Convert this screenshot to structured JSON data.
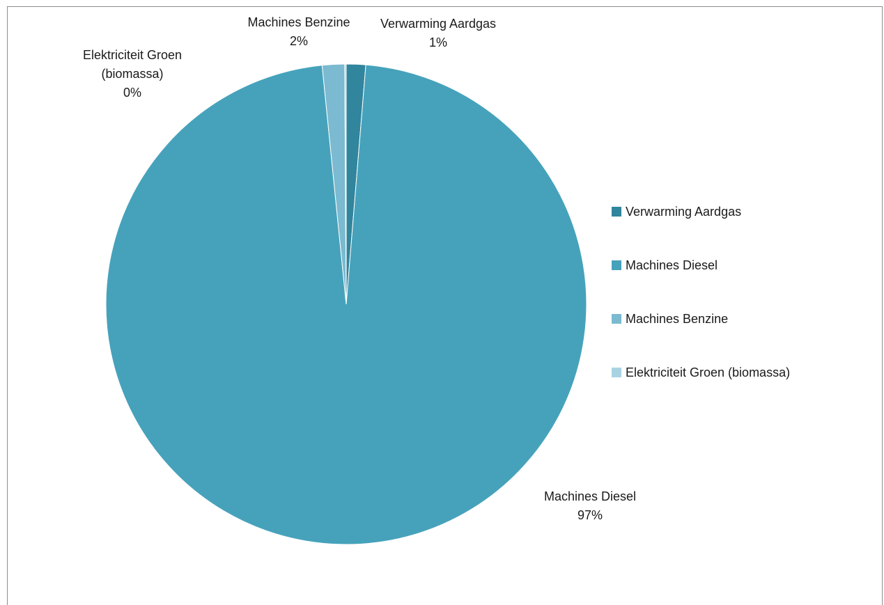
{
  "chart_data": {
    "type": "pie",
    "categories": [
      "Verwarming Aardgas",
      "Machines Diesel",
      "Machines Benzine",
      "Elektriciteit Groen (biomassa)"
    ],
    "values": [
      1.3,
      97.1,
      1.5,
      0.1
    ],
    "data_labels": [
      {
        "lines": [
          "Verwarming Aardgas",
          "1%"
        ]
      },
      {
        "lines": [
          "Machines Diesel",
          "97%"
        ]
      },
      {
        "lines": [
          "Machines Benzine",
          "2%"
        ]
      },
      {
        "lines": [
          "Elektriciteit Groen",
          "(biomassa)",
          "0%"
        ]
      }
    ],
    "colors": [
      "#31859c",
      "#46a2bb",
      "#7bbad0",
      "#a9d3e2"
    ],
    "legend": {
      "position": "right",
      "items": [
        "Verwarming Aardgas",
        "Machines Diesel",
        "Machines Benzine",
        "Elektriciteit Groen (biomassa)"
      ]
    },
    "start_angle_deg": 0,
    "direction": "clockwise"
  }
}
